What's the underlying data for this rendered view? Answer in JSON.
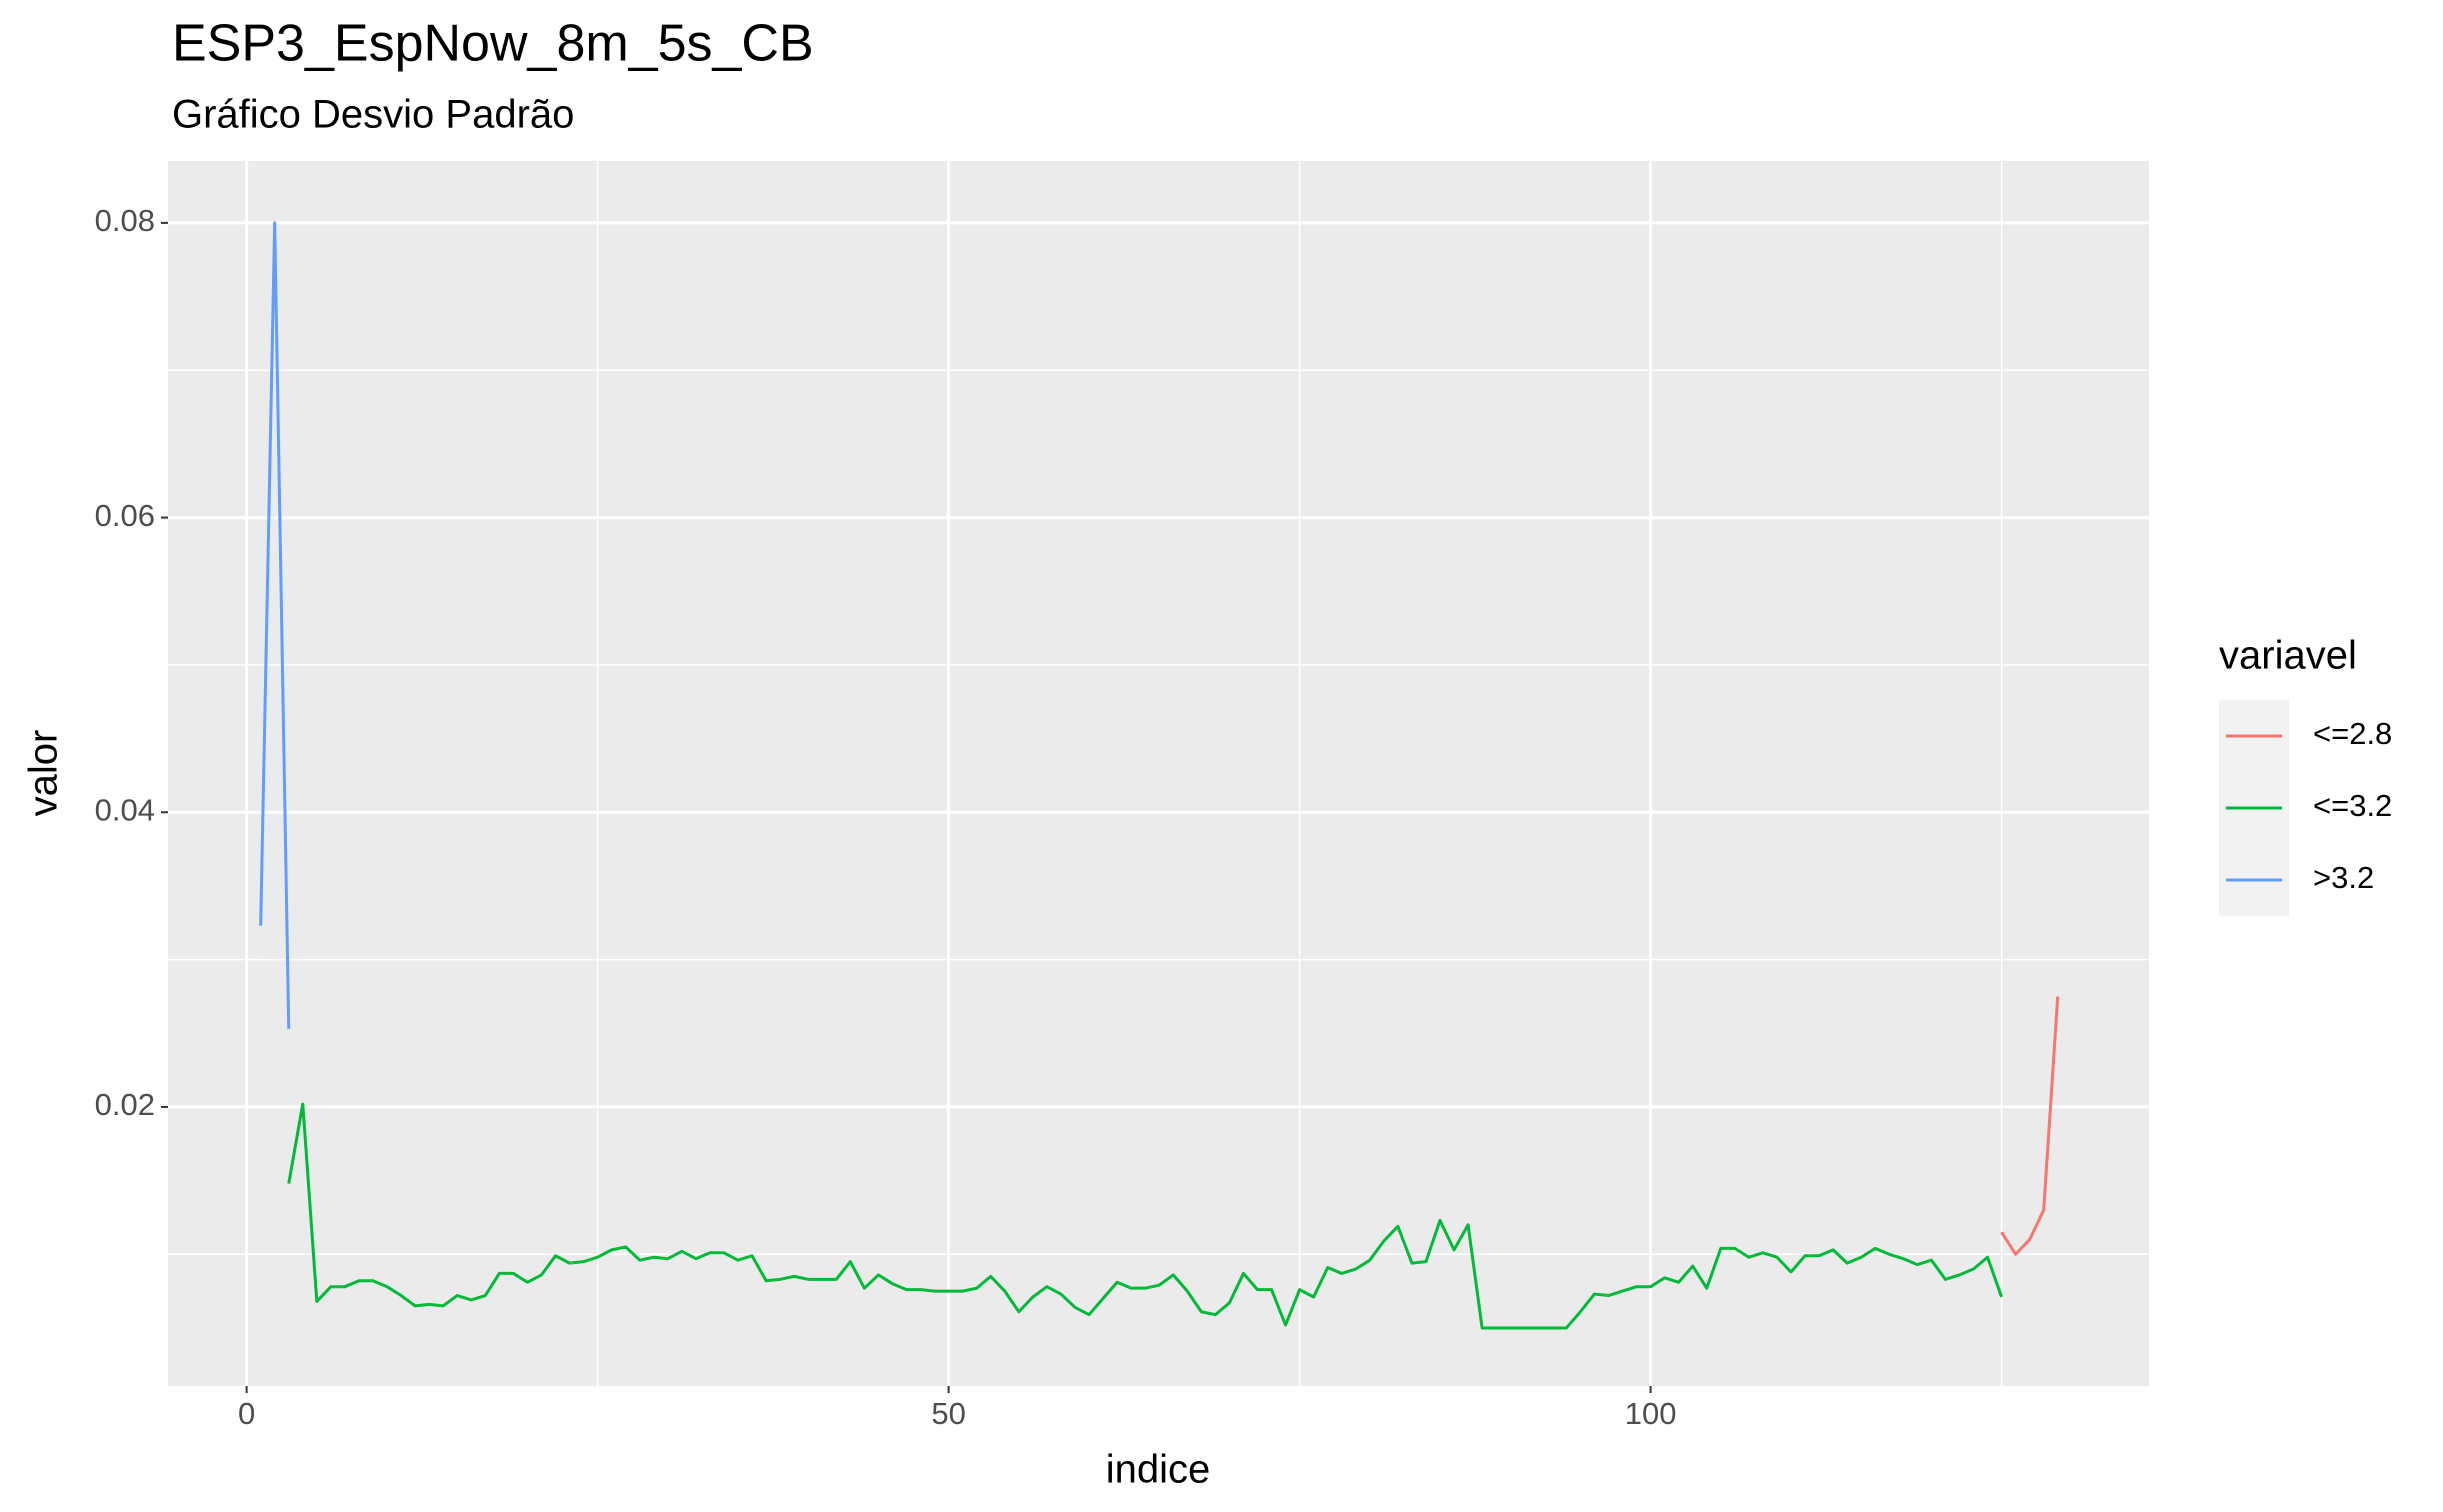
{
  "chart_data": {
    "type": "line",
    "title": "ESP3_EspNow_8m_5s_CB",
    "subtitle": "Gráfico Desvio Padrão",
    "x_label": "indice",
    "y_label": "valor",
    "legend_title": "variavel",
    "legend_position": "right",
    "grid": true,
    "xlim": [
      -5.6,
      135.5
    ],
    "ylim": [
      0.00106,
      0.0842
    ],
    "xticks": [
      0,
      50,
      100
    ],
    "yticks": [
      0.02,
      0.04,
      0.06,
      0.08
    ],
    "series": [
      {
        "name": "<=2.8",
        "color": "#F8766D",
        "x": [
          125,
          126,
          127,
          128,
          129
        ],
        "values": [
          0.0115,
          0.01,
          0.011,
          0.013,
          0.0275
        ]
      },
      {
        "name": "<=3.2",
        "color": "#00BA38",
        "x": [
          3,
          4,
          5,
          6,
          7,
          8,
          9,
          10,
          11,
          12,
          13,
          14,
          15,
          16,
          17,
          18,
          19,
          20,
          21,
          22,
          23,
          24,
          25,
          26,
          27,
          28,
          29,
          30,
          31,
          32,
          33,
          34,
          35,
          36,
          37,
          38,
          39,
          40,
          41,
          42,
          43,
          44,
          45,
          46,
          47,
          48,
          49,
          50,
          51,
          52,
          53,
          54,
          55,
          56,
          57,
          58,
          59,
          60,
          61,
          62,
          63,
          64,
          65,
          66,
          67,
          68,
          69,
          70,
          71,
          72,
          73,
          74,
          75,
          76,
          77,
          78,
          79,
          80,
          81,
          82,
          83,
          84,
          85,
          86,
          87,
          88,
          89,
          90,
          91,
          92,
          93,
          94,
          95,
          96,
          97,
          98,
          99,
          100,
          101,
          102,
          103,
          104,
          105,
          106,
          107,
          108,
          109,
          110,
          111,
          112,
          113,
          114,
          115,
          116,
          117,
          118,
          119,
          120,
          121,
          122,
          123,
          124,
          125
        ],
        "values": [
          0.0148,
          0.0202,
          0.0068,
          0.0078,
          0.0078,
          0.0082,
          0.0082,
          0.0078,
          0.0072,
          0.0065,
          0.0066,
          0.0065,
          0.0072,
          0.0069,
          0.0072,
          0.0087,
          0.0087,
          0.0081,
          0.0086,
          0.0099,
          0.0094,
          0.0095,
          0.0098,
          0.0103,
          0.0105,
          0.0096,
          0.0098,
          0.0097,
          0.0102,
          0.0097,
          0.0101,
          0.0101,
          0.0096,
          0.0099,
          0.0082,
          0.0083,
          0.0085,
          0.0083,
          0.0083,
          0.0083,
          0.0095,
          0.0077,
          0.0086,
          0.008,
          0.0076,
          0.0076,
          0.0075,
          0.0075,
          0.0075,
          0.0077,
          0.0085,
          0.0075,
          0.0061,
          0.0071,
          0.0078,
          0.0073,
          0.0064,
          0.0059,
          0.007,
          0.0081,
          0.0077,
          0.0077,
          0.0079,
          0.0086,
          0.0075,
          0.0061,
          0.0059,
          0.0067,
          0.0087,
          0.0076,
          0.0076,
          0.0052,
          0.0076,
          0.0071,
          0.0091,
          0.0087,
          0.009,
          0.0096,
          0.0109,
          0.0119,
          0.0094,
          0.0095,
          0.0123,
          0.0103,
          0.012,
          0.005,
          0.005,
          0.005,
          0.005,
          0.005,
          0.005,
          0.005,
          0.0061,
          0.0073,
          0.0072,
          0.0075,
          0.0078,
          0.0078,
          0.0084,
          0.0081,
          0.0092,
          0.0077,
          0.0104,
          0.0104,
          0.0098,
          0.0101,
          0.0098,
          0.0088,
          0.0099,
          0.0099,
          0.0103,
          0.0094,
          0.0098,
          0.0104,
          0.01,
          0.0097,
          0.0093,
          0.0096,
          0.0083,
          0.0086,
          0.009,
          0.0098,
          0.0071
        ]
      },
      {
        "name": ">3.2",
        "color": "#619CFF",
        "x": [
          1,
          2,
          3
        ],
        "values": [
          0.0323,
          0.08,
          0.0253
        ]
      }
    ]
  }
}
